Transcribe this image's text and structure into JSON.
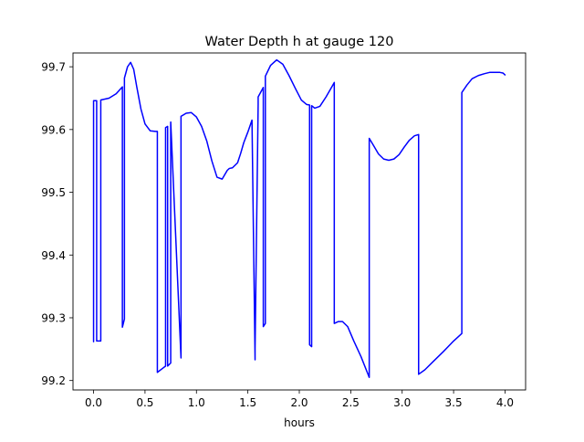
{
  "chart_data": {
    "type": "line",
    "title": "Water Depth h at gauge 120",
    "xlabel": "hours",
    "ylabel": "",
    "xlim": [
      -0.2,
      4.2
    ],
    "ylim": [
      99.185,
      99.722
    ],
    "xticks": [
      0.0,
      0.5,
      1.0,
      1.5,
      2.0,
      2.5,
      3.0,
      3.5,
      4.0
    ],
    "xtick_labels": [
      "0.0",
      "0.5",
      "1.0",
      "1.5",
      "2.0",
      "2.5",
      "3.0",
      "3.5",
      "4.0"
    ],
    "yticks": [
      99.2,
      99.3,
      99.4,
      99.5,
      99.6,
      99.7
    ],
    "ytick_labels": [
      "99.2",
      "99.3",
      "99.4",
      "99.5",
      "99.6",
      "99.7"
    ],
    "grid": false,
    "legend": "none",
    "series": [
      {
        "color": "#0000ff",
        "x": [
          0.0,
          0.0,
          0.03,
          0.03,
          0.07,
          0.07,
          0.15,
          0.22,
          0.28,
          0.28,
          0.3,
          0.3,
          0.33,
          0.36,
          0.39,
          0.42,
          0.46,
          0.5,
          0.55,
          0.6,
          0.62,
          0.62,
          0.66,
          0.7,
          0.7,
          0.72,
          0.72,
          0.75,
          0.75,
          0.85,
          0.85,
          0.9,
          0.95,
          1.0,
          1.05,
          1.1,
          1.15,
          1.2,
          1.25,
          1.3,
          1.32,
          1.35,
          1.4,
          1.43,
          1.46,
          1.5,
          1.54,
          1.57,
          1.57,
          1.6,
          1.6,
          1.65,
          1.65,
          1.67,
          1.67,
          1.72,
          1.78,
          1.84,
          1.9,
          1.96,
          2.02,
          2.07,
          2.1,
          2.1,
          2.12,
          2.12,
          2.15,
          2.2,
          2.26,
          2.32,
          2.34,
          2.34,
          2.38,
          2.42,
          2.47,
          2.53,
          2.6,
          2.68,
          2.68,
          2.72,
          2.77,
          2.82,
          2.87,
          2.92,
          2.97,
          3.02,
          3.07,
          3.12,
          3.16,
          3.16,
          3.22,
          3.3,
          3.4,
          3.5,
          3.58,
          3.58,
          3.63,
          3.68,
          3.74,
          3.8,
          3.85,
          3.9,
          3.95,
          3.98,
          4.0
        ],
        "y": [
          99.262,
          99.646,
          99.646,
          99.263,
          99.263,
          99.647,
          99.65,
          99.657,
          99.668,
          99.285,
          99.298,
          99.682,
          99.7,
          99.707,
          99.696,
          99.668,
          99.633,
          99.609,
          99.598,
          99.597,
          99.597,
          99.213,
          99.218,
          99.223,
          99.603,
          99.605,
          99.223,
          99.228,
          99.612,
          99.236,
          99.621,
          99.626,
          99.627,
          99.62,
          99.605,
          99.582,
          99.55,
          99.524,
          99.521,
          99.535,
          99.538,
          99.539,
          99.547,
          99.562,
          99.579,
          99.596,
          99.615,
          99.233,
          99.251,
          99.64,
          99.652,
          99.667,
          99.286,
          99.291,
          99.685,
          99.702,
          99.711,
          99.704,
          99.686,
          99.666,
          99.647,
          99.64,
          99.639,
          99.257,
          99.254,
          99.638,
          99.634,
          99.637,
          99.652,
          99.669,
          99.675,
          99.291,
          99.294,
          99.294,
          99.286,
          99.263,
          99.238,
          99.205,
          99.586,
          99.575,
          99.561,
          99.553,
          99.551,
          99.553,
          99.56,
          99.572,
          99.583,
          99.59,
          99.592,
          99.21,
          99.217,
          99.23,
          99.246,
          99.263,
          99.275,
          99.659,
          99.671,
          99.681,
          99.686,
          99.689,
          99.691,
          99.691,
          99.691,
          99.69,
          99.687
        ]
      }
    ]
  }
}
